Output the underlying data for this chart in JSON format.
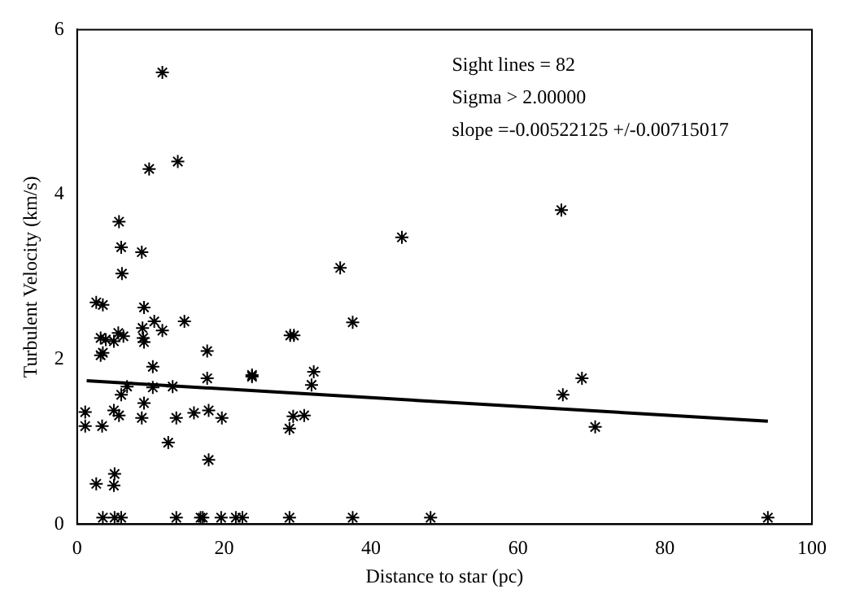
{
  "chart_data": {
    "type": "scatter",
    "xlabel": "Distance to star (pc)",
    "ylabel": "Turbulent Velocity (km/s)",
    "annotations": [
      "Sight lines = 82",
      "Sigma > 2.00000",
      "slope =-0.00522125 +/-0.00715017"
    ],
    "xlim": [
      0,
      100
    ],
    "ylim": [
      0,
      6
    ],
    "xticks": [
      0,
      20,
      40,
      60,
      80,
      100
    ],
    "yticks": [
      0,
      2,
      4,
      6
    ],
    "grid": false,
    "legend": false,
    "marker": "cross",
    "series": [
      {
        "color": "#000000",
        "x": [
          11.6,
          9.8,
          13.7,
          5.7,
          6.0,
          8.8,
          6.1,
          2.6,
          3.5,
          9.1,
          10.5,
          14.6,
          11.6,
          3.2,
          3.9,
          5.0,
          5.6,
          6.3,
          8.9,
          9.0,
          9.1,
          3.2,
          3.5,
          17.7,
          23.8,
          23.8,
          32.2,
          31.9,
          10.3,
          17.7,
          6.8,
          10.3,
          13.0,
          6.0,
          29.0,
          29.5,
          1.1,
          1.1,
          3.4,
          5.0,
          5.7,
          9.1,
          8.8,
          13.5,
          15.9,
          17.9,
          19.7,
          28.9,
          29.4,
          30.9,
          12.4,
          17.9,
          2.6,
          5.1,
          5.0,
          3.5,
          5.1,
          6.0,
          13.5,
          16.8,
          17.1,
          19.6,
          21.6,
          22.5,
          28.9,
          37.5,
          66.1,
          68.7,
          70.5,
          37.5,
          48.1,
          94.0,
          65.9,
          44.2,
          35.8
        ],
        "values": [
          5.48,
          4.31,
          4.4,
          3.67,
          3.36,
          3.3,
          3.04,
          2.69,
          2.66,
          2.63,
          2.46,
          2.46,
          2.35,
          2.26,
          2.24,
          2.22,
          2.32,
          2.28,
          2.38,
          2.26,
          2.21,
          2.05,
          2.08,
          2.1,
          1.81,
          1.79,
          1.85,
          1.69,
          1.91,
          1.77,
          1.67,
          1.66,
          1.67,
          1.57,
          2.29,
          2.29,
          1.36,
          1.19,
          1.19,
          1.38,
          1.32,
          1.47,
          1.29,
          1.29,
          1.35,
          1.38,
          1.29,
          1.16,
          1.31,
          1.32,
          0.99,
          0.78,
          0.49,
          0.61,
          0.47,
          0.08,
          0.08,
          0.08,
          0.08,
          0.08,
          0.08,
          0.08,
          0.08,
          0.08,
          0.08,
          2.45,
          1.57,
          1.77,
          1.18,
          0.08,
          0.08,
          0.08,
          3.81,
          3.48,
          3.11
        ]
      },
      {
        "type": "line",
        "color": "#000000",
        "marker": "none",
        "x": [
          1.3,
          94
        ],
        "values": [
          1.74,
          1.25
        ]
      }
    ]
  }
}
